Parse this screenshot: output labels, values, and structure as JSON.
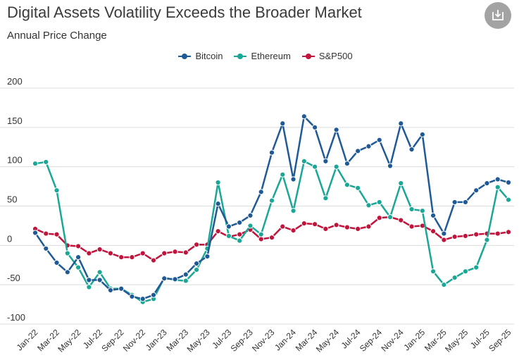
{
  "title": "Digital Assets Volatility Exceeds the Broader Market",
  "subtitle": "Annual Price Change",
  "download_icon": "download-icon",
  "colors": {
    "bitcoin": "#1f5a96",
    "ethereum": "#1aa795",
    "sp500": "#c0143c",
    "grid": "#dcdcdc",
    "axis_text": "#333333"
  },
  "chart_data": {
    "type": "line",
    "title": "Digital Assets Volatility Exceeds the Broader Market",
    "subtitle": "Annual Price Change",
    "xlabel": "",
    "ylabel": "",
    "ylim": [
      -100,
      200
    ],
    "yticks": [
      -100,
      -50,
      0,
      50,
      100,
      150,
      200
    ],
    "ytick_labels": [
      "-100",
      "-50",
      "0",
      "50",
      "100",
      "150",
      "200"
    ],
    "grid": true,
    "legend_position": "top-center",
    "categories": [
      "Jan-22",
      "Feb-22",
      "Mar-22",
      "Apr-22",
      "May-22",
      "Jun-22",
      "Jul-22",
      "Aug-22",
      "Sep-22",
      "Oct-22",
      "Nov-22",
      "Dec-22",
      "Jan-23",
      "Feb-23",
      "Mar-23",
      "Apr-23",
      "May-23",
      "Jun-23",
      "Jul-23",
      "Aug-23",
      "Sep-23",
      "Oct-23",
      "Nov-23",
      "Dec-23",
      "Jan-24",
      "Feb-24",
      "Mar-24",
      "Apr-24",
      "May-24",
      "Jun-24",
      "Jul-24",
      "Aug-24",
      "Sep-24",
      "Oct-24",
      "Nov-24",
      "Dec-24",
      "Jan-25",
      "Feb-25",
      "Mar-25",
      "Apr-25",
      "May-25",
      "Jun-25",
      "Jul-25",
      "Aug-25",
      "Sep-25"
    ],
    "tick_labels": [
      "Jan-22",
      "Mar-22",
      "May-22",
      "Jul-22",
      "Sep-22",
      "Nov-22",
      "Jan-23",
      "Mar-23",
      "May-23",
      "Jul-23",
      "Sep-23",
      "Nov-23",
      "Jan-24",
      "Mar-24",
      "May-24",
      "Jul-24",
      "Sep-24",
      "Nov-24",
      "Jan-25",
      "Mar-25",
      "May-25",
      "Jul-25",
      "Sep-25"
    ],
    "series": [
      {
        "name": "Bitcoin",
        "color": "#1f5a96",
        "values": [
          16,
          -4,
          -22,
          -34,
          -15,
          -44,
          -44,
          -57,
          -55,
          -65,
          -68,
          -63,
          -42,
          -43,
          -37,
          -23,
          -14,
          53,
          24,
          29,
          38,
          68,
          118,
          155,
          84,
          164,
          150,
          107,
          147,
          104,
          120,
          126,
          134,
          101,
          155,
          122,
          141,
          38,
          15,
          55,
          55,
          70,
          79,
          84,
          80
        ]
      },
      {
        "name": "Ethereum",
        "color": "#1aa795",
        "values": [
          104,
          106,
          70,
          -10,
          -28,
          -53,
          -34,
          -55,
          -55,
          -63,
          -72,
          -68,
          -41,
          -44,
          -45,
          -31,
          -4,
          80,
          12,
          6,
          25,
          14,
          57,
          90,
          44,
          107,
          100,
          60,
          100,
          77,
          73,
          51,
          55,
          36,
          79,
          46,
          44,
          -33,
          -50,
          -41,
          -33,
          -28,
          7,
          74,
          58
        ]
      },
      {
        "name": "S&P500",
        "color": "#c0143c",
        "values": [
          21,
          15,
          14,
          0,
          -1,
          -10,
          -5,
          -10,
          -15,
          -15,
          -10,
          -19,
          -10,
          -8,
          -9,
          1,
          1,
          18,
          11,
          14,
          20,
          8,
          10,
          24,
          19,
          28,
          27,
          21,
          26,
          23,
          21,
          24,
          35,
          36,
          32,
          24,
          25,
          18,
          7,
          11,
          12,
          14,
          15,
          15,
          17
        ]
      }
    ]
  }
}
